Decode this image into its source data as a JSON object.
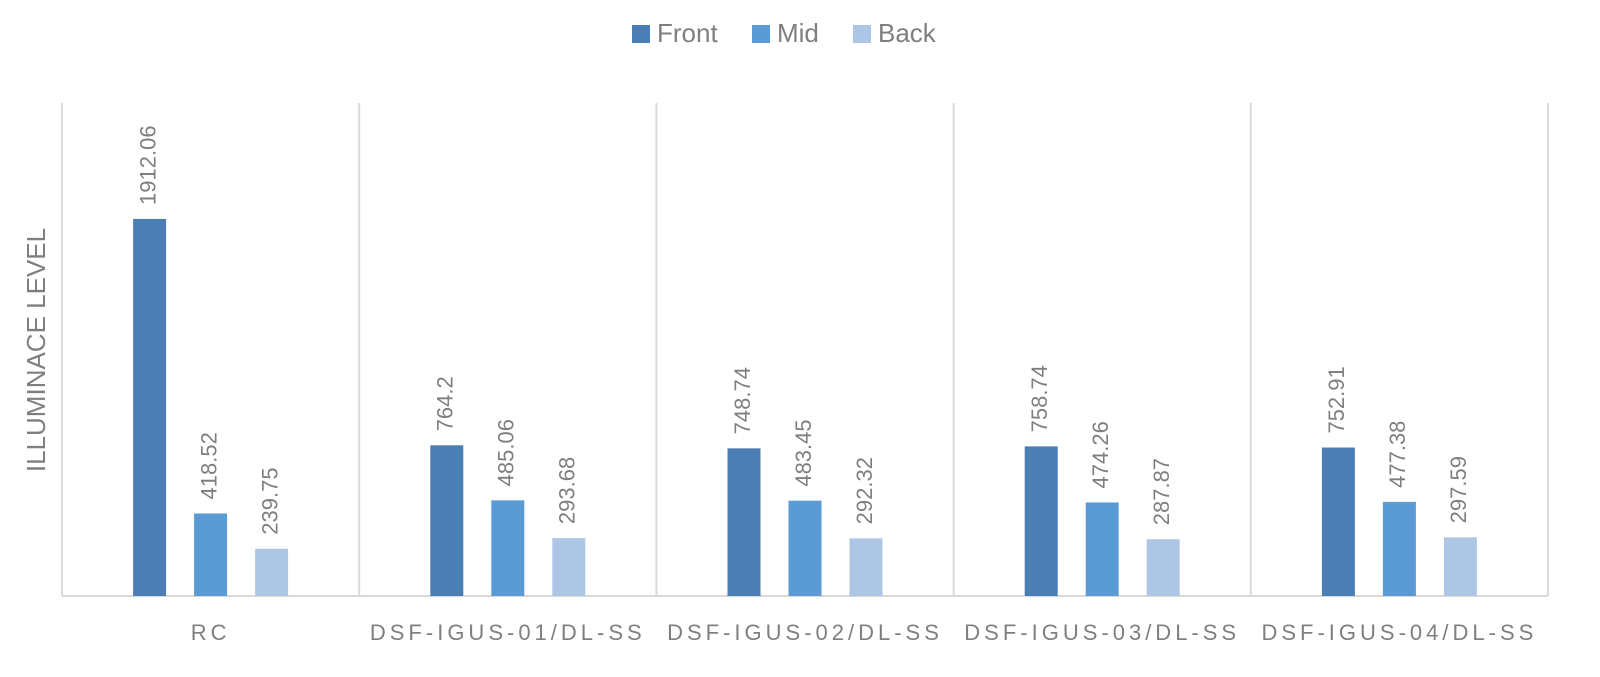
{
  "chart_data": {
    "type": "bar",
    "y_label": "ILLUMINACE LEVEL",
    "categories": [
      "RC",
      "DSF-IGUS-01/DL-SS",
      "DSF-IGUS-02/DL-SS",
      "DSF-IGUS-03/DL-SS",
      "DSF-IGUS-04/DL-SS"
    ],
    "series": [
      {
        "name": "Front",
        "color": "#4a7eb4",
        "values": [
          1912.06,
          764.2,
          748.74,
          758.74,
          752.91
        ]
      },
      {
        "name": "Mid",
        "color": "#5b9bd5",
        "values": [
          418.52,
          485.06,
          483.45,
          474.26,
          477.38
        ]
      },
      {
        "name": "Back",
        "color": "#adc6e5",
        "values": [
          239.75,
          293.68,
          292.32,
          287.87,
          297.59
        ]
      }
    ],
    "ylim": [
      0,
      2500
    ],
    "legend": "top"
  }
}
